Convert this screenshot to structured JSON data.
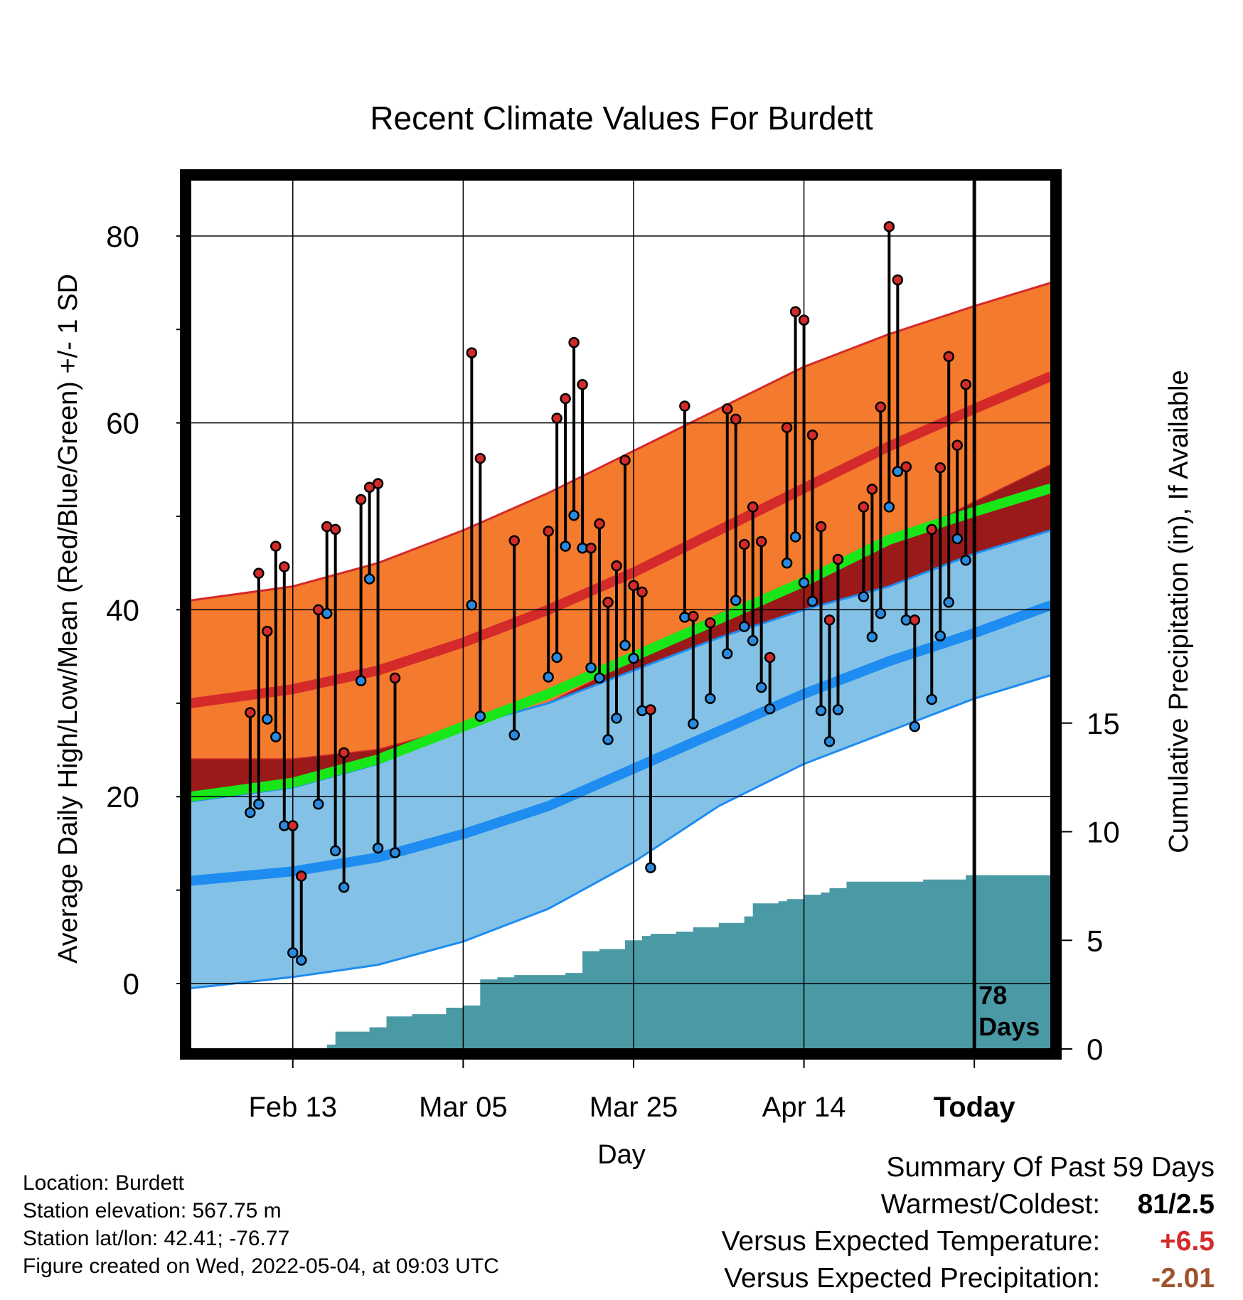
{
  "chart_data": {
    "type": "line",
    "title": "Recent Climate Values For Burdett",
    "xlabel": "Day",
    "ylabel": "Average Daily High/Low/Mean (Red/Blue/Green) +/- 1 SD",
    "ylabel_right": "Cumulative Precipitation (in), If Available",
    "x_tick_labels": [
      "Feb 13",
      "Mar 05",
      "Mar 25",
      "Apr 14",
      "Today"
    ],
    "x_tick_days": [
      -80,
      -60,
      -40,
      -20,
      0
    ],
    "xlim_days": [
      -92,
      9
    ],
    "ylim": [
      -7,
      86
    ],
    "y_ticks": [
      0,
      20,
      40,
      60,
      80
    ],
    "ylim_right": [
      0,
      40
    ],
    "y_ticks_right": [
      0,
      5,
      10,
      15
    ],
    "grid": true,
    "today_label": "78\nDays",
    "colors": {
      "high_band": "#f47a2e",
      "high_mean": "#d42a2a",
      "low_band": "#83c2e6",
      "low_mean": "#1e8cf0",
      "mean_line": "#19e619",
      "precip": "#4a9aa5",
      "high_marker": "#d42a2a",
      "low_marker": "#2a8ae0"
    },
    "normal_days": [
      -92,
      -80,
      -70,
      -60,
      -50,
      -40,
      -30,
      -20,
      -10,
      0,
      9
    ],
    "normal_high_mean": [
      30,
      31.5,
      33.5,
      36.5,
      40,
      44,
      48.5,
      53,
      57.5,
      61.5,
      65
    ],
    "normal_high_upper": [
      41,
      42.5,
      45,
      48.5,
      52.5,
      57,
      61.5,
      66,
      69.5,
      72.5,
      75
    ],
    "normal_high_lower": [
      24,
      24,
      25,
      27.5,
      30,
      34.5,
      39.5,
      43,
      47,
      51.5,
      55.5
    ],
    "normal_low_mean": [
      11,
      12,
      13.5,
      16,
      19,
      23,
      27,
      31,
      34.5,
      37.5,
      40.5
    ],
    "normal_low_upper": [
      19.5,
      21,
      23.5,
      27.5,
      30,
      33.5,
      37,
      40,
      42.5,
      46,
      48.5
    ],
    "normal_low_lower": [
      -0.5,
      0.7,
      2,
      4.5,
      8,
      13,
      19,
      23.5,
      27,
      30.5,
      33
    ],
    "normal_mean": [
      20,
      21.5,
      24,
      27.5,
      31,
      35,
      39,
      43,
      47.5,
      50.5,
      53
    ],
    "observed": [
      {
        "day": -85,
        "high": 29,
        "low": 18.3
      },
      {
        "day": -84,
        "high": 43.9,
        "low": 19.2
      },
      {
        "day": -83,
        "high": 37.7,
        "low": 28.3
      },
      {
        "day": -82,
        "high": 46.8,
        "low": 26.4
      },
      {
        "day": -81,
        "high": 44.6,
        "low": 16.9
      },
      {
        "day": -80,
        "high": 16.9,
        "low": 3.3
      },
      {
        "day": -79,
        "high": 11.5,
        "low": 2.5
      },
      {
        "day": -77,
        "high": 40,
        "low": 19.2
      },
      {
        "day": -76,
        "high": 48.9,
        "low": 39.6
      },
      {
        "day": -75,
        "high": 48.6,
        "low": 14.2
      },
      {
        "day": -74,
        "high": 24.7,
        "low": 10.3
      },
      {
        "day": -72,
        "high": 51.8,
        "low": 32.4
      },
      {
        "day": -71,
        "high": 53.1,
        "low": 43.3
      },
      {
        "day": -70,
        "high": 53.5,
        "low": 14.5
      },
      {
        "day": -68,
        "high": 32.7,
        "low": 14
      },
      {
        "day": -59,
        "high": 67.5,
        "low": 40.5
      },
      {
        "day": -58,
        "high": 56.2,
        "low": 28.6
      },
      {
        "day": -54,
        "high": 47.4,
        "low": 26.6
      },
      {
        "day": -50,
        "high": 48.4,
        "low": 32.8
      },
      {
        "day": -49,
        "high": 60.5,
        "low": 34.9
      },
      {
        "day": -48,
        "high": 62.6,
        "low": 46.8
      },
      {
        "day": -47,
        "high": 68.6,
        "low": 50.1
      },
      {
        "day": -46,
        "high": 64.1,
        "low": 46.6
      },
      {
        "day": -45,
        "high": 46.6,
        "low": 33.8
      },
      {
        "day": -44,
        "high": 49.2,
        "low": 32.7
      },
      {
        "day": -43,
        "high": 40.8,
        "low": 26.1
      },
      {
        "day": -42,
        "high": 44.7,
        "low": 28.4
      },
      {
        "day": -41,
        "high": 56,
        "low": 36.2
      },
      {
        "day": -40,
        "high": 42.6,
        "low": 34.8
      },
      {
        "day": -39,
        "high": 41.9,
        "low": 29.2
      },
      {
        "day": -38,
        "high": 29.3,
        "low": 12.4
      },
      {
        "day": -34,
        "high": 61.8,
        "low": 39.2
      },
      {
        "day": -33,
        "high": 39.3,
        "low": 27.8
      },
      {
        "day": -31,
        "high": 38.6,
        "low": 30.5
      },
      {
        "day": -29,
        "high": 61.5,
        "low": 35.3
      },
      {
        "day": -28,
        "high": 60.4,
        "low": 41
      },
      {
        "day": -27,
        "high": 47,
        "low": 38.2
      },
      {
        "day": -26,
        "high": 51,
        "low": 36.7
      },
      {
        "day": -25,
        "high": 47.3,
        "low": 31.7
      },
      {
        "day": -24,
        "high": 34.9,
        "low": 29.4
      },
      {
        "day": -22,
        "high": 59.5,
        "low": 45
      },
      {
        "day": -21,
        "high": 71.9,
        "low": 47.8
      },
      {
        "day": -20,
        "high": 71,
        "low": 42.9
      },
      {
        "day": -19,
        "high": 58.7,
        "low": 40.9
      },
      {
        "day": -18,
        "high": 48.9,
        "low": 29.2
      },
      {
        "day": -17,
        "high": 38.9,
        "low": 25.9
      },
      {
        "day": -16,
        "high": 45.4,
        "low": 29.3
      },
      {
        "day": -13,
        "high": 51,
        "low": 41.4
      },
      {
        "day": -12,
        "high": 52.9,
        "low": 37.1
      },
      {
        "day": -11,
        "high": 61.7,
        "low": 39.6
      },
      {
        "day": -10,
        "high": 81,
        "low": 51
      },
      {
        "day": -9,
        "high": 75.3,
        "low": 54.8
      },
      {
        "day": -8,
        "high": 55.3,
        "low": 38.9
      },
      {
        "day": -7,
        "high": 38.9,
        "low": 27.5
      },
      {
        "day": -5,
        "high": 48.6,
        "low": 30.4
      },
      {
        "day": -4,
        "high": 55.2,
        "low": 37.2
      },
      {
        "day": -3,
        "high": 67.1,
        "low": 40.8
      },
      {
        "day": -2,
        "high": 57.6,
        "low": 47.6
      },
      {
        "day": -1,
        "high": 64.1,
        "low": 45.3
      }
    ],
    "precip_cumulative": {
      "days": [
        -80,
        -76,
        -75,
        -72,
        -71,
        -70,
        -69,
        -68,
        -66,
        -62,
        -60,
        -59,
        -58,
        -56,
        -54,
        -50,
        -48,
        -47,
        -46,
        -44,
        -43,
        -41,
        -39,
        -38,
        -35,
        -33,
        -30,
        -27,
        -26,
        -23,
        -22,
        -20,
        -18,
        -17,
        -15,
        -10,
        -6,
        -3,
        -1,
        9
      ],
      "values": [
        0,
        0.2,
        0.8,
        0.8,
        1,
        1,
        1.5,
        1.5,
        1.6,
        1.9,
        2,
        2,
        3.2,
        3.3,
        3.4,
        3.4,
        3.5,
        3.5,
        4.5,
        4.6,
        4.6,
        5,
        5.2,
        5.3,
        5.4,
        5.6,
        5.8,
        6.1,
        6.7,
        6.8,
        6.9,
        7.1,
        7.2,
        7.4,
        7.7,
        7.7,
        7.8,
        7.8,
        8,
        8
      ]
    }
  },
  "footer": {
    "location": "Location: Burdett",
    "elevation": "Station elevation: 567.75 m",
    "latlon": "Station lat/lon: 42.41; -76.77",
    "created": "Figure created on Wed, 2022-05-04, at 09:03 UTC"
  },
  "summary": {
    "title": "Summary Of Past 59 Days",
    "warmest_label": "Warmest/Coldest:",
    "warmest_value": "81/2.5",
    "temp_label": "Versus Expected Temperature:",
    "temp_value": "+6.5",
    "temp_color": "#d42a2a",
    "precip_label": "Versus Expected Precipitation:",
    "precip_value": "-2.01",
    "precip_color": "#a0522d"
  }
}
